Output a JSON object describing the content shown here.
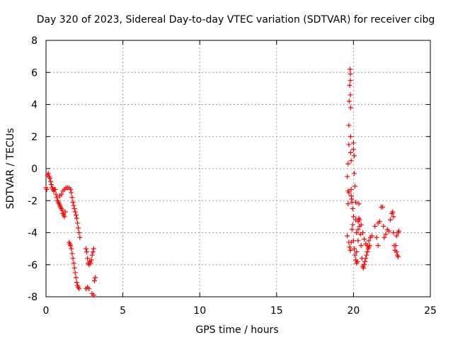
{
  "chart_data": {
    "type": "scatter",
    "title": "Day 320 of 2023, Sidereal Day-to-day VTEC variation (SDTVAR) for receiver cibg",
    "xlabel": "GPS time / hours",
    "ylabel": "SDTVAR / TECUs",
    "xlim": [
      0,
      25
    ],
    "ylim": [
      -8,
      8
    ],
    "xticks": [
      0,
      5,
      10,
      15,
      20,
      25
    ],
    "yticks": [
      -8,
      -6,
      -4,
      -2,
      0,
      2,
      4,
      6,
      8
    ],
    "grid": true,
    "marker": "+",
    "color": "#ff0000",
    "series": [
      {
        "name": "cibg",
        "points": [
          [
            0.0,
            -1.2
          ],
          [
            0.05,
            -1.3
          ],
          [
            0.1,
            -0.4
          ],
          [
            0.15,
            -0.3
          ],
          [
            0.2,
            -0.5
          ],
          [
            0.25,
            -0.6
          ],
          [
            0.3,
            -0.8
          ],
          [
            0.35,
            -1.0
          ],
          [
            0.4,
            -1.2
          ],
          [
            0.45,
            -1.3
          ],
          [
            0.5,
            -1.4
          ],
          [
            0.55,
            -1.3
          ],
          [
            0.6,
            -1.3
          ],
          [
            0.65,
            -1.6
          ],
          [
            0.7,
            -1.8
          ],
          [
            0.75,
            -2.0
          ],
          [
            0.8,
            -2.1
          ],
          [
            0.85,
            -2.2
          ],
          [
            0.9,
            -2.3
          ],
          [
            0.95,
            -2.4
          ],
          [
            1.0,
            -2.5
          ],
          [
            1.05,
            -2.6
          ],
          [
            1.1,
            -2.8
          ],
          [
            1.15,
            -2.9
          ],
          [
            1.2,
            -3.0
          ],
          [
            1.25,
            -2.7
          ],
          [
            0.9,
            -1.7
          ],
          [
            1.0,
            -1.6
          ],
          [
            1.1,
            -1.4
          ],
          [
            1.2,
            -1.3
          ],
          [
            1.3,
            -1.2
          ],
          [
            1.4,
            -1.2
          ],
          [
            1.5,
            -1.2
          ],
          [
            1.6,
            -1.3
          ],
          [
            1.65,
            -1.5
          ],
          [
            1.7,
            -1.8
          ],
          [
            1.75,
            -2.1
          ],
          [
            1.8,
            -2.3
          ],
          [
            1.85,
            -2.5
          ],
          [
            1.9,
            -2.7
          ],
          [
            1.95,
            -2.9
          ],
          [
            2.0,
            -3.1
          ],
          [
            2.05,
            -3.4
          ],
          [
            2.1,
            -3.7
          ],
          [
            2.15,
            -4.0
          ],
          [
            2.2,
            -4.3
          ],
          [
            1.5,
            -4.6
          ],
          [
            1.55,
            -4.7
          ],
          [
            1.6,
            -4.8
          ],
          [
            1.65,
            -5.0
          ],
          [
            1.7,
            -5.3
          ],
          [
            1.75,
            -5.6
          ],
          [
            1.8,
            -5.9
          ],
          [
            1.85,
            -6.2
          ],
          [
            1.9,
            -6.5
          ],
          [
            1.95,
            -6.8
          ],
          [
            2.0,
            -7.1
          ],
          [
            2.05,
            -7.3
          ],
          [
            2.1,
            -7.4
          ],
          [
            2.15,
            -7.5
          ],
          [
            2.6,
            -5.0
          ],
          [
            2.65,
            -5.2
          ],
          [
            2.7,
            -5.6
          ],
          [
            2.75,
            -5.9
          ],
          [
            2.8,
            -6.0
          ],
          [
            2.85,
            -5.8
          ],
          [
            2.9,
            -5.9
          ],
          [
            2.95,
            -5.7
          ],
          [
            3.0,
            -5.4
          ],
          [
            3.05,
            -5.2
          ],
          [
            3.1,
            -5.0
          ],
          [
            2.6,
            -7.5
          ],
          [
            2.7,
            -7.4
          ],
          [
            2.8,
            -7.5
          ],
          [
            3.0,
            -7.8
          ],
          [
            3.1,
            -7.9
          ],
          [
            3.15,
            -7.0
          ],
          [
            3.2,
            -6.8
          ],
          [
            19.6,
            -4.2
          ],
          [
            19.6,
            -0.5
          ],
          [
            19.65,
            0.3
          ],
          [
            19.65,
            -1.4
          ],
          [
            19.65,
            -2.2
          ],
          [
            19.7,
            2.7
          ],
          [
            19.7,
            1.5
          ],
          [
            19.7,
            -1.5
          ],
          [
            19.72,
            4.2
          ],
          [
            19.75,
            5.2
          ],
          [
            19.78,
            6.2
          ],
          [
            19.8,
            5.5
          ],
          [
            19.8,
            5.9
          ],
          [
            19.8,
            4.6
          ],
          [
            19.82,
            3.8
          ],
          [
            19.82,
            2.0
          ],
          [
            19.82,
            1.0
          ],
          [
            19.85,
            0.5
          ],
          [
            19.85,
            -1.3
          ],
          [
            19.85,
            -1.7
          ],
          [
            19.88,
            -1.9
          ],
          [
            19.9,
            -2.1
          ],
          [
            19.95,
            -2.5
          ],
          [
            20.0,
            -3.0
          ],
          [
            19.7,
            -4.6
          ],
          [
            19.75,
            -4.9
          ],
          [
            19.8,
            -5.1
          ],
          [
            19.85,
            -4.6
          ],
          [
            19.9,
            -3.8
          ],
          [
            19.95,
            -3.5
          ],
          [
            20.0,
            1.6
          ],
          [
            20.0,
            1.2
          ],
          [
            20.05,
            0.8
          ],
          [
            20.05,
            -0.3
          ],
          [
            20.1,
            -1.1
          ],
          [
            20.15,
            -2.1
          ],
          [
            20.15,
            -3.2
          ],
          [
            20.2,
            -4.0
          ],
          [
            20.2,
            -5.2
          ],
          [
            20.25,
            -5.8
          ],
          [
            20.3,
            -4.5
          ],
          [
            20.3,
            -3.3
          ],
          [
            20.35,
            -3.1
          ],
          [
            20.35,
            -2.2
          ],
          [
            20.4,
            -3.6
          ],
          [
            20.45,
            -4.1
          ],
          [
            20.5,
            -4.8
          ],
          [
            20.55,
            -5.6
          ],
          [
            20.6,
            -6.1
          ],
          [
            20.65,
            -6.2
          ],
          [
            20.7,
            -6.0
          ],
          [
            20.75,
            -5.8
          ],
          [
            20.8,
            -5.6
          ],
          [
            20.85,
            -5.4
          ],
          [
            20.9,
            -5.2
          ],
          [
            20.95,
            -5.0
          ],
          [
            21.0,
            -4.9
          ],
          [
            21.05,
            -4.8
          ],
          [
            20.0,
            -4.5
          ],
          [
            20.05,
            -5.0
          ],
          [
            20.1,
            -5.4
          ],
          [
            20.15,
            -5.7
          ],
          [
            20.2,
            -5.9
          ],
          [
            20.3,
            -3.8
          ],
          [
            20.4,
            -3.2
          ],
          [
            20.5,
            -3.5
          ],
          [
            20.6,
            -4.0
          ],
          [
            20.7,
            -4.4
          ],
          [
            20.8,
            -4.7
          ],
          [
            20.9,
            -4.8
          ],
          [
            21.0,
            -4.5
          ],
          [
            21.1,
            -4.3
          ],
          [
            21.2,
            -4.2
          ],
          [
            21.4,
            -3.6
          ],
          [
            21.5,
            -4.3
          ],
          [
            21.6,
            -4.8
          ],
          [
            21.6,
            -3.4
          ],
          [
            21.7,
            -3.3
          ],
          [
            21.8,
            -2.4
          ],
          [
            21.9,
            -2.4
          ],
          [
            21.95,
            -3.6
          ],
          [
            22.0,
            -4.3
          ],
          [
            22.1,
            -4.1
          ],
          [
            22.2,
            -3.8
          ],
          [
            22.3,
            -3.9
          ],
          [
            22.4,
            -3.2
          ],
          [
            22.5,
            -2.8
          ],
          [
            22.55,
            -2.7
          ],
          [
            22.6,
            -3.0
          ],
          [
            22.6,
            -4.0
          ],
          [
            22.65,
            -4.8
          ],
          [
            22.7,
            -5.1
          ],
          [
            22.75,
            -4.8
          ],
          [
            22.8,
            -4.2
          ],
          [
            22.8,
            -5.2
          ],
          [
            22.85,
            -5.4
          ],
          [
            22.9,
            -5.5
          ],
          [
            22.9,
            -4.0
          ],
          [
            22.95,
            -3.9
          ]
        ]
      }
    ]
  }
}
